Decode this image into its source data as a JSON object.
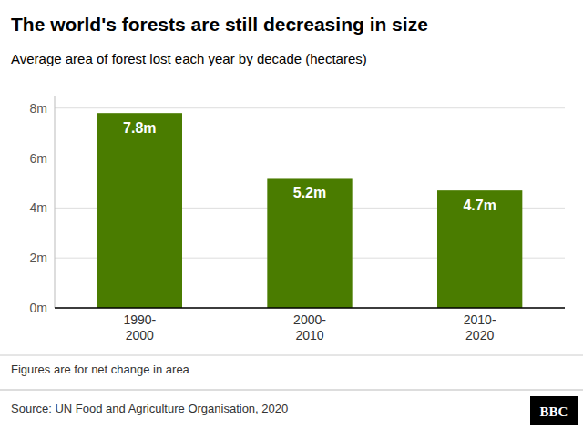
{
  "chart_data": {
    "type": "bar",
    "title": "The world's forests are still decreasing in size",
    "subtitle": "Average area of forest lost each year by decade (hectares)",
    "categories": [
      "1990-\n2000",
      "2000-\n2010",
      "2010-\n2020"
    ],
    "values": [
      7800000,
      5200000,
      4700000
    ],
    "value_labels": [
      "7.8m",
      "5.2m",
      "4.7m"
    ],
    "data_labels": true,
    "color": "#4a7c00",
    "ylim": [
      0,
      8500000
    ],
    "yticks": [
      {
        "value": 0,
        "label": "0m"
      },
      {
        "value": 2000000,
        "label": "2m"
      },
      {
        "value": 4000000,
        "label": "4m"
      },
      {
        "value": 6000000,
        "label": "6m"
      },
      {
        "value": 8000000,
        "label": "8m"
      }
    ],
    "grid": true,
    "footnote": "Figures are for net change in area",
    "source": "Source: UN Food and Agriculture Organisation, 2020",
    "logo": "BBC"
  }
}
